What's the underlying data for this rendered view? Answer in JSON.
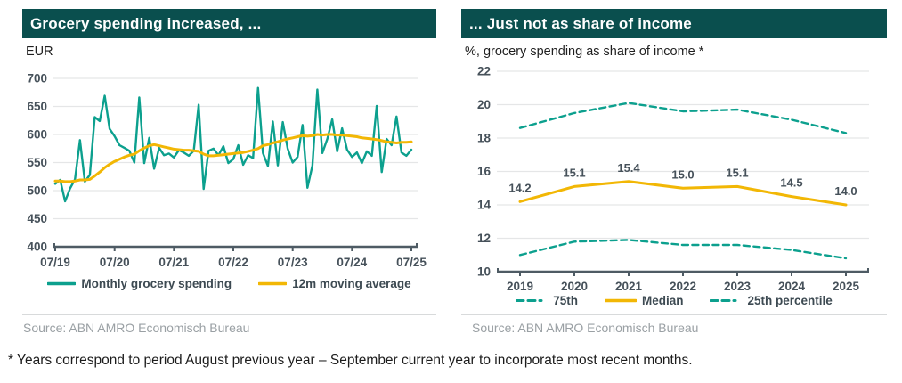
{
  "colors": {
    "header_bg": "#0a4f4e",
    "teal": "#0ca08e",
    "yellow": "#f2b705",
    "axis": "#4e5b64",
    "grid": "#e5e6e7",
    "tick_text": "#46515a",
    "source_text": "#9aa0a4",
    "title_text": "#ffffff"
  },
  "left_panel": {
    "title": "Grocery spending increased, ...",
    "unit_label": "EUR",
    "source": "Source: ABN AMRO Economisch Bureau",
    "legend": [
      {
        "label": "Monthly grocery spending",
        "color": "#0ca08e",
        "style": "solid"
      },
      {
        "label": "12m moving average",
        "color": "#f2b705",
        "style": "solid"
      }
    ]
  },
  "right_panel": {
    "title": "... Just not as share of income",
    "subtitle": "%, grocery spending as share of income *",
    "source": "Source: ABN AMRO Economisch Bureau",
    "legend": [
      {
        "label": "75th",
        "color": "#0ca08e",
        "style": "dashed"
      },
      {
        "label": "Median",
        "color": "#f2b705",
        "style": "solid"
      },
      {
        "label": "25th percentile",
        "color": "#0ca08e",
        "style": "dashed"
      }
    ]
  },
  "footnote": "* Years correspond to period August previous year – September current year to incorporate most recent months.",
  "chart_data": [
    {
      "type": "line",
      "title": "Grocery spending increased, ...",
      "ylabel": "EUR",
      "ylim": [
        400,
        700
      ],
      "yticks": [
        400,
        450,
        500,
        550,
        600,
        650,
        700
      ],
      "grid": true,
      "legend_position": "bottom",
      "x_tick_labels": [
        "07/19",
        "07/20",
        "07/21",
        "07/22",
        "07/23",
        "07/24",
        "07/25"
      ],
      "x_start": "2019-07",
      "x_end": "2025-07",
      "series": [
        {
          "name": "Monthly grocery spending",
          "color": "#0ca08e",
          "style": "solid",
          "width": 2.4,
          "values": [
            512,
            519,
            481,
            504,
            520,
            590,
            516,
            528,
            631,
            624,
            669,
            610,
            597,
            581,
            576,
            571,
            550,
            666,
            549,
            594,
            539,
            576,
            563,
            566,
            559,
            572,
            568,
            562,
            571,
            653,
            503,
            571,
            575,
            563,
            579,
            549,
            556,
            581,
            546,
            563,
            558,
            683,
            567,
            544,
            623,
            545,
            622,
            575,
            550,
            560,
            617,
            505,
            545,
            680,
            567,
            592,
            627,
            570,
            611,
            573,
            560,
            568,
            549,
            570,
            562,
            651,
            533,
            592,
            581,
            632,
            568,
            562,
            573
          ]
        },
        {
          "name": "12m moving average",
          "color": "#f2b705",
          "style": "solid",
          "width": 3,
          "values": [
            517,
            517,
            516,
            516,
            517,
            519,
            519,
            520,
            526,
            533,
            541,
            547,
            552,
            556,
            560,
            563,
            565,
            571,
            576,
            580,
            582,
            580,
            578,
            576,
            574,
            573,
            572,
            572,
            571,
            570,
            565,
            562,
            562,
            563,
            564,
            565,
            566,
            567,
            568,
            570,
            572,
            575,
            580,
            582,
            585,
            587,
            590,
            592,
            594,
            596,
            598,
            597,
            598,
            600,
            599,
            600,
            600,
            599,
            599,
            598,
            597,
            596,
            594,
            593,
            592,
            591,
            589,
            587,
            586,
            585,
            586,
            586,
            587
          ]
        }
      ]
    },
    {
      "type": "line",
      "title": "... Just not as share of income",
      "subtitle": "%, grocery spending as share of income *",
      "ylim": [
        10,
        22
      ],
      "yticks": [
        10,
        12,
        14,
        16,
        18,
        20,
        22
      ],
      "grid": true,
      "legend_position": "bottom",
      "categories": [
        "2019",
        "2020",
        "2021",
        "2022",
        "2023",
        "2024",
        "2025"
      ],
      "series": [
        {
          "name": "75th",
          "color": "#0ca08e",
          "style": "dashed",
          "width": 2.4,
          "values": [
            18.6,
            19.5,
            20.1,
            19.6,
            19.7,
            19.1,
            18.3
          ]
        },
        {
          "name": "Median",
          "color": "#f2b705",
          "style": "solid",
          "width": 3,
          "values": [
            14.2,
            15.1,
            15.4,
            15.0,
            15.1,
            14.5,
            14.0
          ],
          "data_labels": [
            "14.2",
            "15.1",
            "15.4",
            "15.0",
            "15.1",
            "14.5",
            "14.0"
          ]
        },
        {
          "name": "25th percentile",
          "color": "#0ca08e",
          "style": "dashed",
          "width": 2.4,
          "values": [
            11.0,
            11.8,
            11.9,
            11.6,
            11.6,
            11.3,
            10.8
          ]
        }
      ]
    }
  ]
}
